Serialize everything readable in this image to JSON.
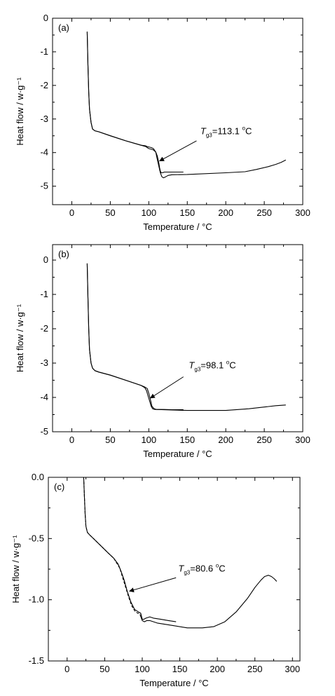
{
  "chart_data": [
    {
      "type": "line",
      "panel_label": "(a)",
      "xlabel": "Temperature / °C",
      "ylabel": "Heat flow / w·g⁻¹",
      "xlim": [
        -25,
        300
      ],
      "ylim": [
        -5.55,
        0
      ],
      "xticks": [
        0,
        50,
        100,
        150,
        200,
        250,
        300
      ],
      "yticks": [
        0,
        -1,
        -2,
        -3,
        -4,
        -5
      ],
      "ytick_labels": [
        "0",
        "-1",
        "-2",
        "-3",
        "-4",
        "-5"
      ],
      "annotation": {
        "italic": "T",
        "sub": "g3",
        "value": "=113.1 ",
        "sup": "o",
        "unit": "C",
        "text_at": [
          167,
          -3.45
        ],
        "arrow_from": [
          162,
          -3.65
        ],
        "arrow_to": [
          114,
          -4.25
        ]
      },
      "series": [
        {
          "style": "solid",
          "x": [
            20,
            21,
            22,
            23,
            25,
            27,
            30,
            35,
            50,
            70,
            90,
            96,
            98,
            100,
            103,
            106,
            109,
            111,
            113,
            114,
            115,
            116,
            118,
            120,
            125,
            130,
            140,
            145
          ],
          "y": [
            -0.4,
            -1.4,
            -2.2,
            -2.7,
            -3.1,
            -3.3,
            -3.35,
            -3.38,
            -3.5,
            -3.65,
            -3.78,
            -3.82,
            -3.85,
            -3.88,
            -3.9,
            -3.92,
            -3.98,
            -4.1,
            -4.3,
            -4.45,
            -4.55,
            -4.6,
            -4.6,
            -4.58,
            -4.58,
            -4.58,
            -4.58,
            -4.58
          ]
        },
        {
          "style": "solid",
          "x": [
            20,
            21,
            22,
            23,
            25,
            27,
            30,
            35,
            50,
            70,
            90,
            96,
            98,
            100,
            103,
            106,
            109,
            111,
            113,
            115,
            117,
            119,
            122,
            125,
            130,
            150,
            200,
            225,
            240,
            255,
            265,
            272,
            278
          ],
          "y": [
            -0.4,
            -1.4,
            -2.2,
            -2.7,
            -3.1,
            -3.3,
            -3.35,
            -3.38,
            -3.5,
            -3.65,
            -3.78,
            -3.8,
            -3.82,
            -3.83,
            -3.85,
            -3.88,
            -3.98,
            -4.2,
            -4.4,
            -4.6,
            -4.72,
            -4.75,
            -4.72,
            -4.68,
            -4.66,
            -4.65,
            -4.6,
            -4.57,
            -4.5,
            -4.42,
            -4.35,
            -4.29,
            -4.22
          ]
        }
      ]
    },
    {
      "type": "line",
      "panel_label": "(b)",
      "xlabel": "Temperature / °C",
      "ylabel": "Heat flow / w·g⁻¹",
      "xlim": [
        -25,
        300
      ],
      "ylim": [
        -5,
        0.45
      ],
      "xticks": [
        0,
        50,
        100,
        150,
        200,
        250,
        300
      ],
      "yticks": [
        0,
        -1,
        -2,
        -3,
        -4,
        -5
      ],
      "ytick_labels": [
        "0",
        "-1",
        "-2",
        "-3",
        "-4",
        "-5"
      ],
      "annotation": {
        "italic": "T",
        "sub": "g3",
        "value": "=98.1 ",
        "sup": "o",
        "unit": "C",
        "text_at": [
          152,
          -3.15
        ],
        "arrow_from": [
          145,
          -3.4
        ],
        "arrow_to": [
          102,
          -4.02
        ]
      },
      "series": [
        {
          "style": "solid",
          "x": [
            20,
            21,
            22,
            23,
            25,
            27,
            30,
            35,
            50,
            70,
            90,
            95,
            97,
            99,
            101,
            103,
            105,
            108,
            112,
            120,
            130,
            145
          ],
          "y": [
            -0.1,
            -1.1,
            -2.0,
            -2.6,
            -3.0,
            -3.15,
            -3.22,
            -3.26,
            -3.35,
            -3.5,
            -3.65,
            -3.72,
            -3.8,
            -3.95,
            -4.1,
            -4.25,
            -4.33,
            -4.35,
            -4.35,
            -4.35,
            -4.36,
            -4.36
          ]
        },
        {
          "style": "solid",
          "x": [
            20,
            21,
            22,
            23,
            25,
            27,
            30,
            35,
            50,
            70,
            90,
            95,
            98,
            100,
            102,
            104,
            107,
            110,
            120,
            150,
            200,
            230,
            250,
            265,
            278
          ],
          "y": [
            -0.1,
            -1.1,
            -2.0,
            -2.6,
            -3.0,
            -3.15,
            -3.22,
            -3.26,
            -3.35,
            -3.5,
            -3.65,
            -3.7,
            -3.74,
            -3.88,
            -4.05,
            -4.25,
            -4.33,
            -4.35,
            -4.36,
            -4.38,
            -4.38,
            -4.33,
            -4.28,
            -4.24,
            -4.22
          ]
        }
      ]
    },
    {
      "type": "line",
      "panel_label": "(c)",
      "xlabel": "Temperature / °C",
      "ylabel": "Heat flow / w·g⁻¹",
      "xlim": [
        -25,
        310
      ],
      "ylim": [
        -1.5,
        0
      ],
      "xticks": [
        0,
        50,
        100,
        150,
        200,
        250,
        300
      ],
      "yticks": [
        0,
        -0.5,
        -1.0,
        -1.5
      ],
      "ytick_labels": [
        "0.0",
        "-0.5",
        "-1.0",
        "-1.5"
      ],
      "annotation": {
        "italic": "T",
        "sub": "g3",
        "value": "=80.6 ",
        "sup": "o",
        "unit": "C",
        "text_at": [
          148,
          -0.77
        ],
        "arrow_from": [
          145,
          -0.82
        ],
        "arrow_to": [
          83,
          -0.93
        ]
      },
      "series": [
        {
          "style": "solid",
          "x": [
            22,
            23,
            24,
            25,
            27,
            30,
            35,
            45,
            55,
            62,
            68,
            72,
            76,
            80,
            85,
            90,
            95,
            98,
            100,
            102,
            105,
            110,
            115,
            125,
            135,
            145
          ],
          "y": [
            0,
            -0.15,
            -0.3,
            -0.4,
            -0.45,
            -0.47,
            -0.5,
            -0.56,
            -0.62,
            -0.66,
            -0.71,
            -0.77,
            -0.84,
            -0.93,
            -1.02,
            -1.08,
            -1.1,
            -1.11,
            -1.16,
            -1.16,
            -1.15,
            -1.14,
            -1.15,
            -1.16,
            -1.17,
            -1.18
          ]
        },
        {
          "style": "dash",
          "x": [
            22,
            23,
            24,
            25,
            27,
            30,
            35,
            45,
            55,
            62,
            66,
            70,
            74,
            78,
            82,
            86,
            90,
            94,
            97
          ],
          "y": [
            0,
            -0.15,
            -0.3,
            -0.4,
            -0.45,
            -0.47,
            -0.5,
            -0.56,
            -0.62,
            -0.66,
            -0.7,
            -0.74,
            -0.82,
            -0.9,
            -0.98,
            -1.05,
            -1.09,
            -1.11,
            -1.11
          ]
        },
        {
          "style": "solid",
          "x": [
            97,
            100,
            103,
            106,
            110,
            120,
            140,
            160,
            180,
            195,
            210,
            225,
            240,
            250,
            258,
            263,
            268,
            272,
            276,
            279
          ],
          "y": [
            -1.12,
            -1.17,
            -1.18,
            -1.17,
            -1.17,
            -1.19,
            -1.21,
            -1.23,
            -1.23,
            -1.22,
            -1.18,
            -1.1,
            -0.99,
            -0.9,
            -0.84,
            -0.81,
            -0.8,
            -0.81,
            -0.83,
            -0.85
          ]
        }
      ]
    }
  ],
  "panels_view": [
    "panel-a",
    "panel-b",
    "panel-c"
  ]
}
